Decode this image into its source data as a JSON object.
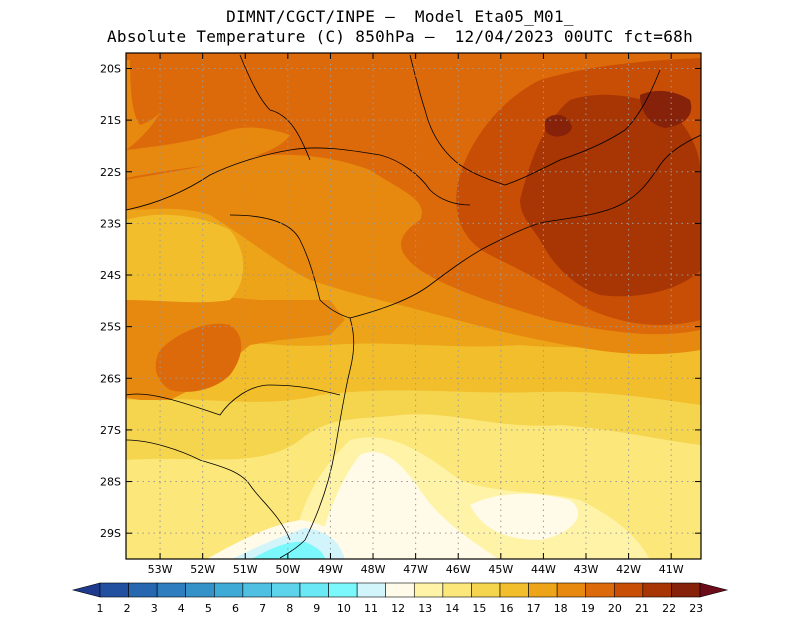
{
  "header": {
    "line1": "DIMNT/CGCT/INPE –  Model Eta05_M01_",
    "line2": "Absolute Temperature (C) 850hPa –  12/04/2023 00UTC fct=68h"
  },
  "map": {
    "lon_range": [
      -53.8,
      -40.3
    ],
    "lat_range": [
      -29.5,
      -19.7
    ],
    "lat_labels": [
      "20S",
      "21S",
      "22S",
      "23S",
      "24S",
      "25S",
      "26S",
      "27S",
      "28S",
      "29S"
    ],
    "lat_values": [
      -20,
      -21,
      -22,
      -23,
      -24,
      -25,
      -26,
      -27,
      -28,
      -29
    ],
    "lon_labels": [
      "53W",
      "52W",
      "51W",
      "50W",
      "49W",
      "48W",
      "47W",
      "46W",
      "45W",
      "44W",
      "43W",
      "42W",
      "41W"
    ],
    "lon_values": [
      -53,
      -52,
      -51,
      -50,
      -49,
      -48,
      -47,
      -46,
      -45,
      -44,
      -43,
      -42,
      -41
    ],
    "grid": true
  },
  "colorbar": {
    "labels": [
      "1",
      "2",
      "3",
      "4",
      "5",
      "6",
      "7",
      "8",
      "9",
      "10",
      "11",
      "12",
      "13",
      "14",
      "15",
      "16",
      "17",
      "18",
      "19",
      "20",
      "21",
      "22",
      "23"
    ],
    "colors": [
      "#1e3a8c",
      "#2150a0",
      "#2767b0",
      "#2e7dbf",
      "#3592c9",
      "#40aad6",
      "#50c0e2",
      "#5ed4ec",
      "#6ae8f5",
      "#7af8fc",
      "#d2f4fb",
      "#fffbe8",
      "#fff3a8",
      "#fce77a",
      "#f6d54e",
      "#f2be2c",
      "#eda419",
      "#e7880f",
      "#dd6a0a",
      "#c94e05",
      "#a83604",
      "#86220a",
      "#6c0b1a"
    ]
  }
}
